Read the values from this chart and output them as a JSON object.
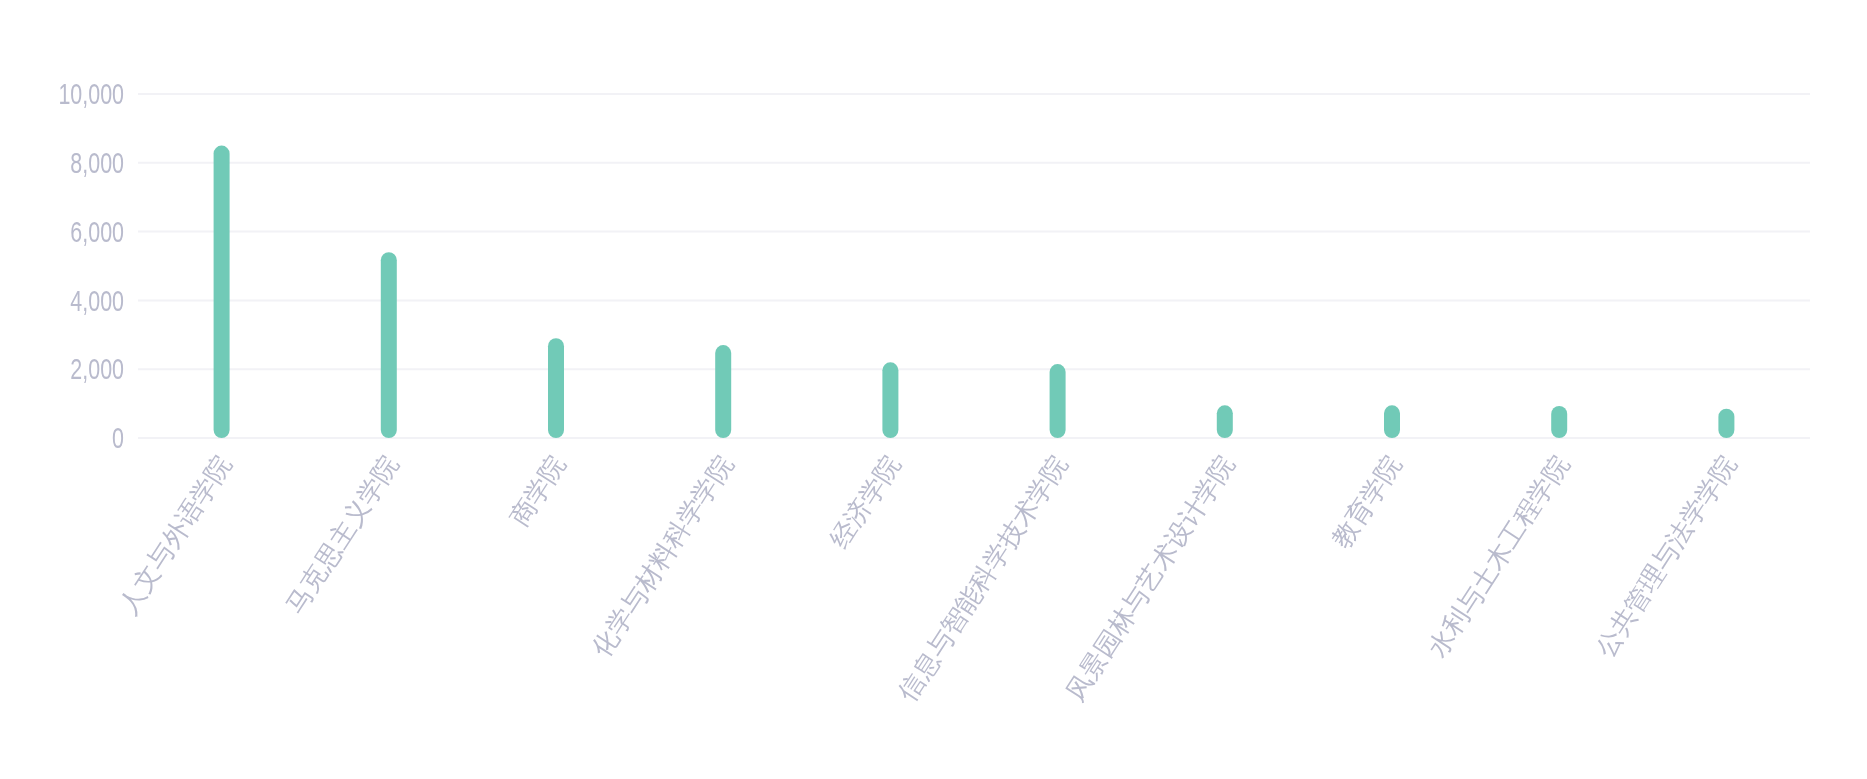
{
  "chart_data": {
    "type": "bar",
    "categories": [
      "人文与外语学院",
      "马克思主义学院",
      "商学院",
      "化学与材料科学学院",
      "经济学院",
      "信息与智能科学技术学院",
      "风景园林与艺术设计学院",
      "教育学院",
      "水利与土木工程学院",
      "公共管理与法学学院"
    ],
    "values": [
      8500,
      5400,
      2900,
      2700,
      2200,
      2150,
      950,
      950,
      930,
      850
    ],
    "color": "#71cab7",
    "ylim": [
      0,
      10000
    ],
    "yticks": [
      0,
      {
        "value": 2000,
        "label": "2,000"
      },
      {
        "value": 4000,
        "label": "4,000"
      },
      {
        "value": 6000,
        "label": "6,000"
      },
      {
        "value": 8000,
        "label": "8,000"
      },
      {
        "value": 10000,
        "label": "10,000"
      }
    ],
    "grid": "y"
  }
}
